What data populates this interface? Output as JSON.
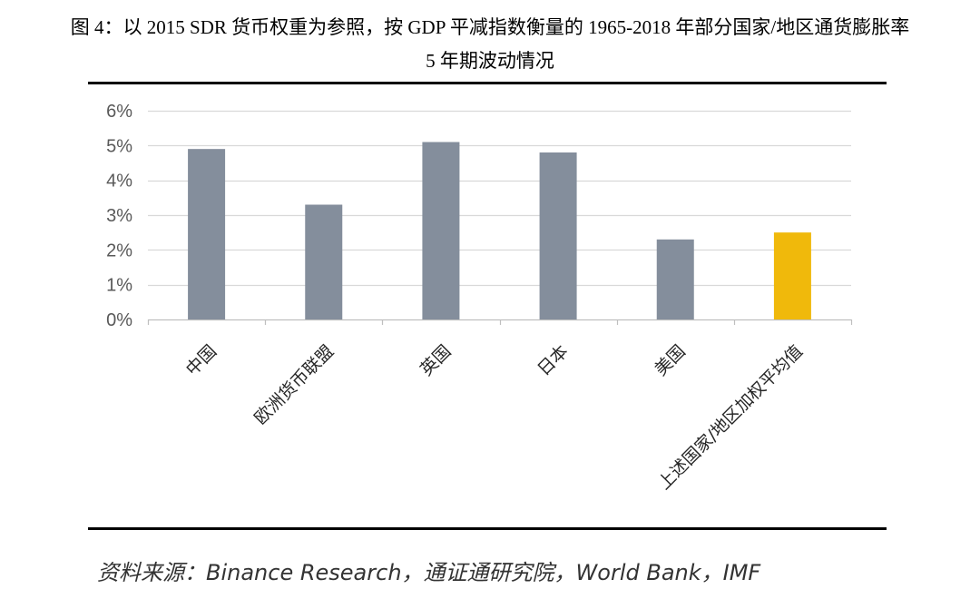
{
  "chart_data": {
    "type": "bar",
    "title": [
      "图 4：以 2015 SDR 货币权重为参照，按 GDP 平减指数衡量的 1965-2018 年部分国家/地区通货膨胀率",
      "5 年期波动情况"
    ],
    "categories": [
      "中国",
      "欧洲货币联盟",
      "英国",
      "日本",
      "美国",
      "上述国家/地区加权平均值"
    ],
    "values": [
      4.9,
      3.3,
      5.1,
      4.8,
      2.3,
      2.5
    ],
    "colors": [
      "#848E9C",
      "#848E9C",
      "#848E9C",
      "#848E9C",
      "#848E9C",
      "#F0B90B"
    ],
    "ylim": [
      0,
      6
    ],
    "yticks": [
      0,
      1,
      2,
      3,
      4,
      5,
      6
    ],
    "ytick_labels": [
      "0%",
      "1%",
      "2%",
      "3%",
      "4%",
      "5%",
      "6%"
    ],
    "grid": true,
    "legend": "none"
  },
  "source": "资料来源：Binance Research，通证通研究院，World Bank，IMF"
}
